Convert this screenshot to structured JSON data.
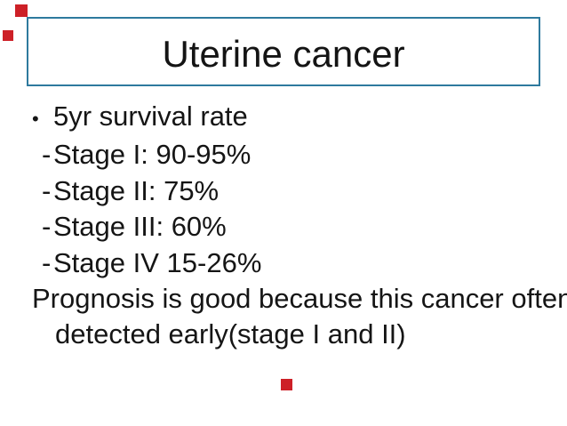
{
  "slide": {
    "title": "Uterine cancer",
    "bullet_line": {
      "marker": "•",
      "text": "5yr survival rate"
    },
    "stages": [
      {
        "marker": "-",
        "text": "Stage I: 90-95%"
      },
      {
        "marker": "-",
        "text": "Stage II: 75%"
      },
      {
        "marker": "-",
        "text": "Stage III: 60%"
      },
      {
        "marker": "-",
        "text": "Stage IV 15-26%"
      }
    ],
    "prognosis_line1": "Prognosis is good because this cancer often",
    "prognosis_line2": "detected early(stage I and II)",
    "colors": {
      "title_border": "#2e7a9e",
      "text": "#151515",
      "background": "#ffffff",
      "artifact_marks": "#cd2027"
    }
  }
}
